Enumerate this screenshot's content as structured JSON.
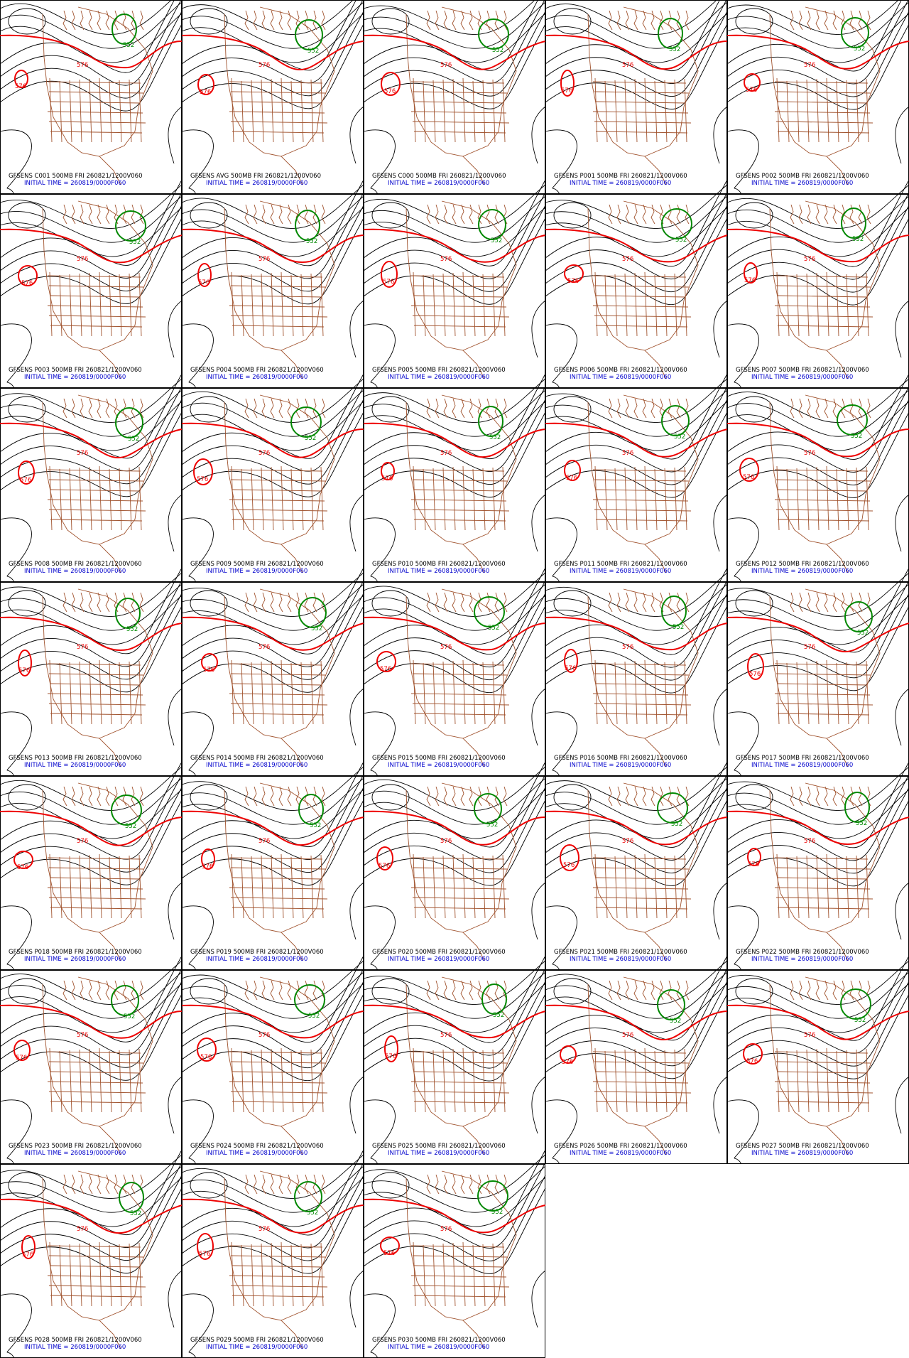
{
  "initial_time": "INITIAL TIME = 260819/0000F060",
  "contour_labels": {
    "red": "576",
    "green": "552"
  },
  "panels": [
    {
      "title": "GFSENS C001 500MB FRI 260821/1200V060"
    },
    {
      "title": "GFSENS AVG 500MB FRI 260821/1200V060"
    },
    {
      "title": "GFSENS C000 500MB FRI 260821/1200V060"
    },
    {
      "title": "GFSENS P001 500MB FRI 260821/1200V060"
    },
    {
      "title": "GFSENS P002 500MB FRI 260821/1200V060"
    },
    {
      "title": "GFSENS P003 500MB FRI 260821/1200V060"
    },
    {
      "title": "GFSENS P004 500MB FRI 260821/1200V060"
    },
    {
      "title": "GFSENS P005 500MB FRI 260821/1200V060"
    },
    {
      "title": "GFSENS P006 500MB FRI 260821/1200V060"
    },
    {
      "title": "GFSENS P007 500MB FRI 260821/1200V060"
    },
    {
      "title": "GFSENS P008 500MB FRI 260821/1200V060"
    },
    {
      "title": "GFSENS P009 500MB FRI 260821/1200V060"
    },
    {
      "title": "GFSENS P010 500MB FRI 260821/1200V060"
    },
    {
      "title": "GFSENS P011 500MB FRI 260821/1200V060"
    },
    {
      "title": "GFSENS P012 500MB FRI 260821/1200V060"
    },
    {
      "title": "GFSENS P013 500MB FRI 260821/1200V060"
    },
    {
      "title": "GFSENS P014 500MB FRI 260821/1200V060"
    },
    {
      "title": "GFSENS P015 500MB FRI 260821/1200V060"
    },
    {
      "title": "GFSENS P016 500MB FRI 260821/1200V060"
    },
    {
      "title": "GFSENS P017 500MB FRI 260821/1200V060"
    },
    {
      "title": "GFSENS P018 500MB FRI 260821/1200V060"
    },
    {
      "title": "GFSENS P019 500MB FRI 260821/1200V060"
    },
    {
      "title": "GFSENS P020 500MB FRI 260821/1200V060"
    },
    {
      "title": "GFSENS P021 500MB FRI 260821/1200V060"
    },
    {
      "title": "GFSENS P022 500MB FRI 260821/1200V060"
    },
    {
      "title": "GFSENS P023 500MB FRI 260821/1200V060"
    },
    {
      "title": "GFSENS P024 500MB FRI 260821/1200V060"
    },
    {
      "title": "GFSENS P025 500MB FRI 260821/1200V060"
    },
    {
      "title": "GFSENS P026 500MB FRI 260821/1200V060"
    },
    {
      "title": "GFSENS P027 500MB FRI 260821/1200V060"
    },
    {
      "title": "GFSENS P028 500MB FRI 260821/1200V060"
    },
    {
      "title": "GFSENS P029 500MB FRI 260821/1200V060"
    },
    {
      "title": "GFSENS P030 500MB FRI 260821/1200V060"
    }
  ]
}
